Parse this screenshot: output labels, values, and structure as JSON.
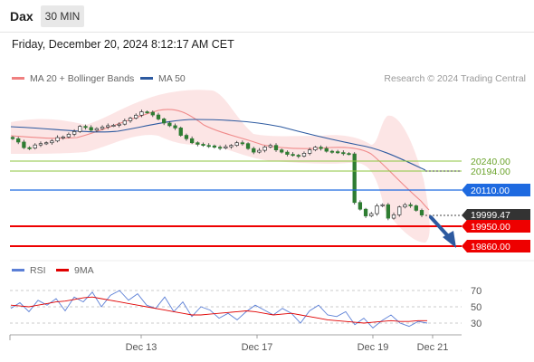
{
  "header": {
    "symbol": "Dax",
    "timeframe": "30 MIN",
    "datetime": "Friday, December 20, 2024 8:12:17 AM CET"
  },
  "legend": {
    "items": [
      {
        "label": "MA 20 + Bollinger Bands",
        "color": "#f08080"
      },
      {
        "label": "MA 50",
        "color": "#2d5aa0"
      }
    ],
    "credit": "Research © 2024 Trading Central"
  },
  "rsi_legend": {
    "items": [
      {
        "label": "RSI",
        "color": "#5b7fd6"
      },
      {
        "label": "9MA",
        "color": "#e00000"
      }
    ]
  },
  "chart_data": [
    {
      "type": "candlestick",
      "title": "",
      "x_labels": [
        "Dec 13",
        "Dec 17",
        "Dec 19",
        "Dec 21"
      ],
      "ylim": [
        19800,
        20520
      ],
      "price_levels": [
        {
          "value": 20240.0,
          "label": "20240.00",
          "kind": "target",
          "color": "#8cc63f"
        },
        {
          "value": 20194.0,
          "label": "20194.00",
          "kind": "target",
          "color": "#8cc63f"
        },
        {
          "value": 20110.0,
          "label": "20110.00",
          "kind": "pivot",
          "color": "#1e6ae0"
        },
        {
          "value": 19999.47,
          "label": "19999.47",
          "kind": "last",
          "color": "#333333"
        },
        {
          "value": 19950.0,
          "label": "19950.00",
          "kind": "support",
          "color": "#ee0000"
        },
        {
          "value": 19860.0,
          "label": "19860.00",
          "kind": "support",
          "color": "#ee0000"
        }
      ],
      "series": [
        {
          "name": "Price",
          "values": [
            20340,
            20325,
            20300,
            20298,
            20312,
            20318,
            20322,
            20330,
            20345,
            20348,
            20360,
            20372,
            20395,
            20390,
            20378,
            20385,
            20392,
            20398,
            20400,
            20405,
            20420,
            20432,
            20445,
            20460,
            20458,
            20446,
            20428,
            20410,
            20398,
            20388,
            20355,
            20340,
            20322,
            20315,
            20310,
            20308,
            20302,
            20298,
            20304,
            20310,
            20322,
            20318,
            20296,
            20280,
            20288,
            20303,
            20310,
            20290,
            20280,
            20270,
            20266,
            20262,
            20275,
            20290,
            20302,
            20296,
            20284,
            20282,
            20278,
            20274,
            20272,
            20055,
            20025,
            19995,
            20005,
            20040,
            20045,
            19985,
            20000,
            20035,
            20045,
            20040,
            20020,
            19999
          ]
        },
        {
          "name": "MA 50",
          "values": [
            20330,
            20332,
            20335,
            20340,
            20345,
            20352,
            20360,
            20368,
            20378,
            20388,
            20395,
            20390,
            20382,
            20372,
            20360,
            20350,
            20342,
            20335,
            20325,
            20312,
            20300,
            20290,
            20280,
            20265,
            20235,
            20205,
            20194
          ]
        }
      ]
    },
    {
      "type": "line",
      "title": "",
      "ylim": [
        20,
        80
      ],
      "y_ticks": [
        70,
        50,
        30
      ],
      "series": [
        {
          "name": "RSI",
          "values": [
            48,
            55,
            44,
            58,
            52,
            60,
            45,
            62,
            56,
            68,
            50,
            64,
            70,
            58,
            66,
            52,
            48,
            62,
            44,
            56,
            38,
            50,
            46,
            36,
            42,
            34,
            44,
            52,
            46,
            40,
            48,
            42,
            30,
            45,
            52,
            40,
            38,
            44,
            28,
            36,
            24,
            33,
            40,
            30,
            26,
            32,
            30
          ]
        },
        {
          "name": "9MA",
          "values": [
            52,
            51,
            50,
            52,
            54,
            56,
            57,
            59,
            61,
            62,
            60,
            58,
            56,
            54,
            52,
            50,
            48,
            46,
            44,
            42,
            40,
            40,
            41,
            42,
            43,
            44,
            45,
            44,
            42,
            40,
            41,
            42,
            40,
            38,
            36,
            34,
            33,
            32,
            31,
            30,
            31,
            32,
            33,
            32,
            32,
            33,
            33
          ]
        }
      ]
    }
  ]
}
